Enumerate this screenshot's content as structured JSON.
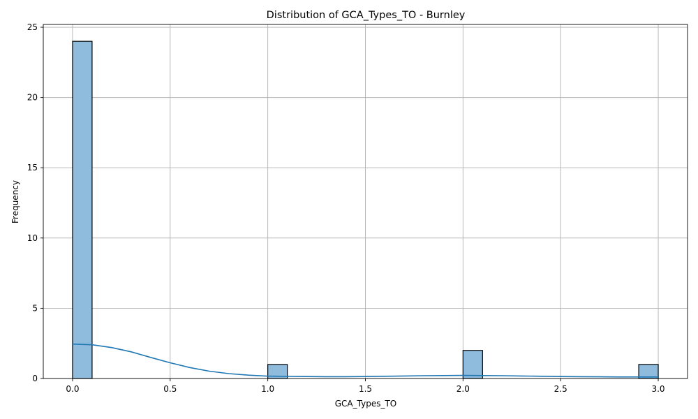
{
  "chart_data": {
    "type": "bar",
    "subtype": "histogram-with-kde",
    "title": "Distribution of GCA_Types_TO - Burnley",
    "xlabel": "GCA_Types_TO",
    "ylabel": "Frequency",
    "xlim": [
      -0.15,
      3.15
    ],
    "ylim": [
      0,
      25.2
    ],
    "xticks": [
      0.0,
      0.5,
      1.0,
      1.5,
      2.0,
      2.5,
      3.0
    ],
    "xtick_labels": [
      "0.0",
      "0.5",
      "1.0",
      "1.5",
      "2.0",
      "2.5",
      "3.0"
    ],
    "yticks": [
      0,
      5,
      10,
      15,
      20,
      25
    ],
    "ytick_labels": [
      "0",
      "5",
      "10",
      "15",
      "20",
      "25"
    ],
    "grid": true,
    "bin_width": 0.1,
    "bars": [
      {
        "x_start": 0.0,
        "x_end": 0.1,
        "count": 24
      },
      {
        "x_start": 1.0,
        "x_end": 1.1,
        "count": 1
      },
      {
        "x_start": 2.0,
        "x_end": 2.1,
        "count": 2
      },
      {
        "x_start": 2.9,
        "x_end": 3.0,
        "count": 1
      }
    ],
    "kde": {
      "x": [
        0.0,
        0.1,
        0.2,
        0.3,
        0.4,
        0.5,
        0.6,
        0.7,
        0.8,
        0.9,
        1.0,
        1.1,
        1.2,
        1.3,
        1.4,
        1.5,
        1.6,
        1.7,
        1.8,
        1.9,
        2.0,
        2.1,
        2.2,
        2.3,
        2.4,
        2.5,
        2.6,
        2.7,
        2.8,
        2.9,
        3.0
      ],
      "y": [
        2.45,
        2.4,
        2.2,
        1.9,
        1.5,
        1.12,
        0.78,
        0.52,
        0.35,
        0.24,
        0.17,
        0.15,
        0.14,
        0.13,
        0.13,
        0.14,
        0.16,
        0.18,
        0.2,
        0.21,
        0.22,
        0.21,
        0.2,
        0.18,
        0.16,
        0.14,
        0.13,
        0.12,
        0.11,
        0.11,
        0.11
      ]
    },
    "colors": {
      "bar_fill": "#8fbbdc",
      "bar_edge": "#000000",
      "kde_line": "#1f77b4",
      "grid": "#b0b0b0"
    }
  }
}
